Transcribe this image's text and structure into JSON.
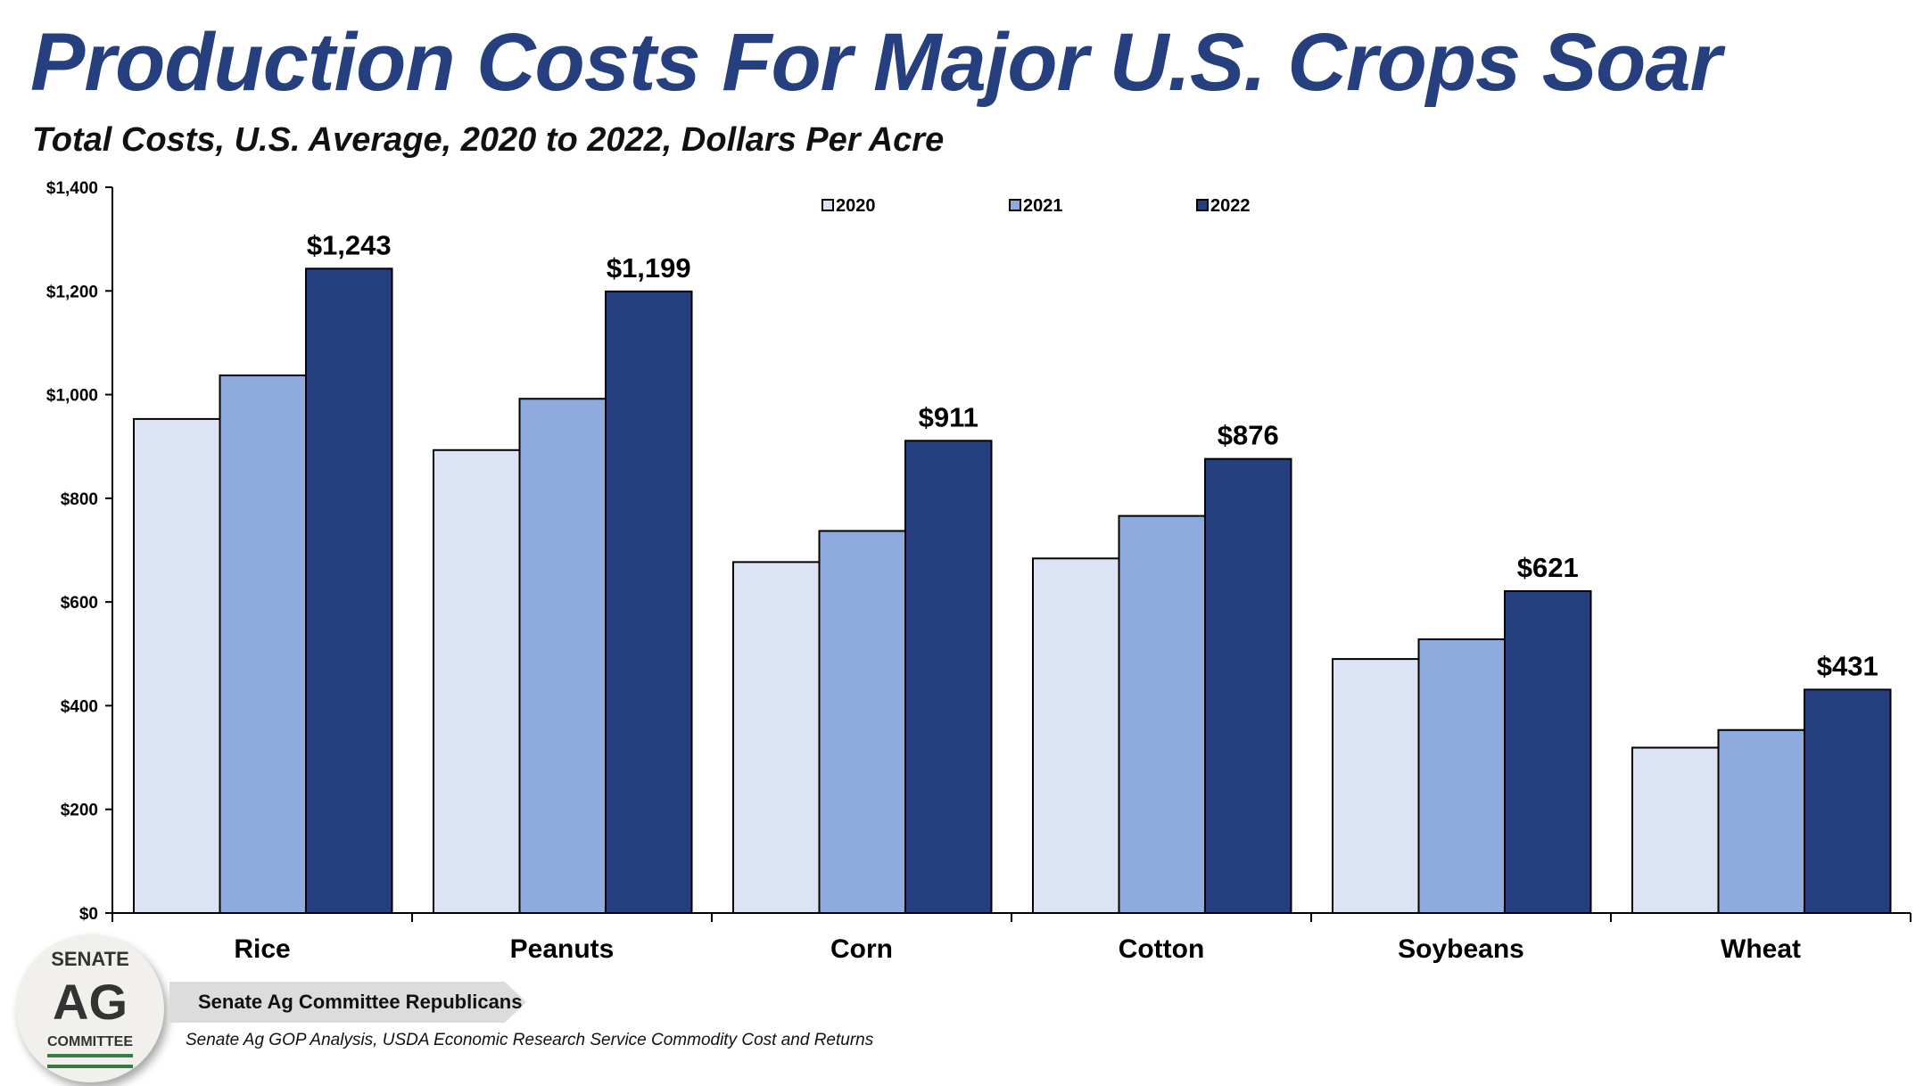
{
  "chart_data": {
    "type": "bar",
    "title": "Production Costs For Major U.S. Crops Soar",
    "subtitle": "Total Costs, U.S. Average, 2020 to 2022, Dollars Per Acre",
    "categories": [
      "Rice",
      "Peanuts",
      "Corn",
      "Cotton",
      "Soybeans",
      "Wheat"
    ],
    "series": [
      {
        "name": "2020",
        "color": "#dbe3f4",
        "values": [
          953,
          893,
          677,
          684,
          490,
          319
        ]
      },
      {
        "name": "2021",
        "color": "#8faadc",
        "values": [
          1037,
          992,
          737,
          766,
          528,
          353
        ]
      },
      {
        "name": "2022",
        "color": "#26407f",
        "values": [
          1243,
          1199,
          911,
          876,
          621,
          431
        ]
      }
    ],
    "data_labels": [
      "$1,243",
      "$1,199",
      "$911",
      "$876",
      "$621",
      "$431"
    ],
    "ylim": [
      0,
      1400
    ],
    "yticks": [
      0,
      200,
      400,
      600,
      800,
      1000,
      1200,
      1400
    ],
    "ytick_labels": [
      "$0",
      "$200",
      "$400",
      "$600",
      "$800",
      "$1,000",
      "$1,200",
      "$1,400"
    ],
    "xlabel": "",
    "ylabel": "",
    "legend_position": "top",
    "grid": false
  },
  "footer": {
    "logo": {
      "line1": "SENATE",
      "line2": "AG",
      "line3": "COMMITTEE"
    },
    "banner": "Senate Ag Committee Republicans",
    "source": "Senate Ag GOP Analysis, USDA Economic Research Service Commodity Cost and Returns"
  }
}
